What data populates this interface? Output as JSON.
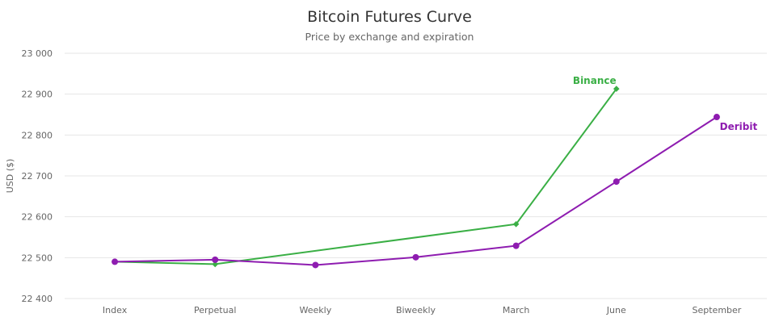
{
  "chart_data": {
    "type": "line",
    "title": "Bitcoin Futures Curve",
    "subtitle": "Price by exchange and expiration",
    "ylabel": "USD ($)",
    "xlabel": "",
    "categories": [
      "Index",
      "Perpetual",
      "Weekly",
      "Biweekly",
      "March",
      "June",
      "September"
    ],
    "ylim": [
      22400,
      23000
    ],
    "yticks": [
      22400,
      22500,
      22600,
      22700,
      22800,
      22900,
      23000
    ],
    "ytick_labels": [
      "22 400",
      "22 500",
      "22 600",
      "22 700",
      "22 800",
      "22 900",
      "23 000"
    ],
    "grid": true,
    "legend": "none (series labels drawn at line ends)",
    "series": [
      {
        "name": "Binance",
        "color": "#3aaf45",
        "marker": "diamond",
        "values": [
          22490,
          22484,
          null,
          null,
          22582,
          22913,
          null
        ]
      },
      {
        "name": "Deribit",
        "color": "#8e1cb0",
        "marker": "circle",
        "values": [
          22490,
          22495,
          22482,
          22501,
          22529,
          22686,
          22844
        ]
      }
    ]
  }
}
